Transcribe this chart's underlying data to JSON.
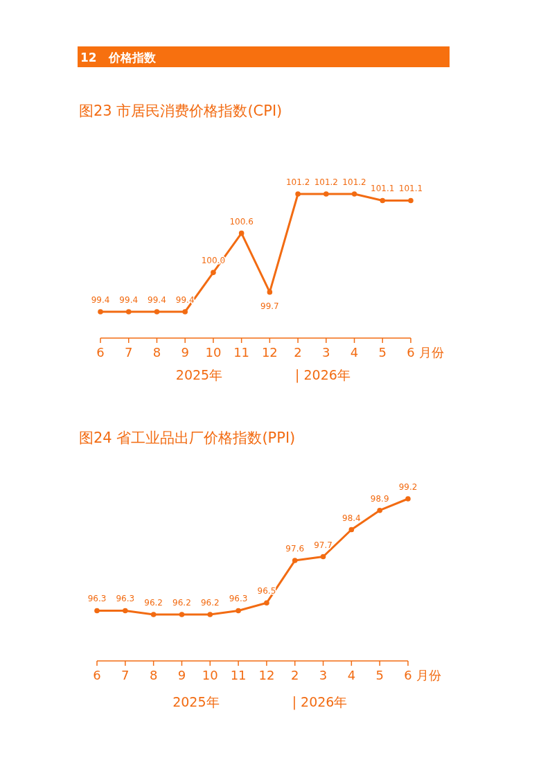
{
  "chart_data": [
    {
      "type": "line",
      "title": "12　价格指数",
      "subtitle": "图23  市居民消费价格指数(CPI)",
      "xlabel": "月份",
      "categories": [
        "6",
        "7",
        "8",
        "9",
        "10",
        "11",
        "12",
        "2",
        "3",
        "4",
        "5",
        "6"
      ],
      "series": [
        {
          "color": "#f26b12",
          "values": [
            99.4,
            99.4,
            99.4,
            99.4,
            100.0,
            100.6,
            99.7,
            101.2,
            101.2,
            101.2,
            101.1,
            101.1
          ],
          "value_labels": [
            "99.4",
            "99.4",
            "99.4",
            "99.4",
            "100.0",
            "100.6",
            "99.7",
            "101.2",
            "101.2",
            "101.2",
            "101.1",
            "101.1"
          ]
        }
      ],
      "marker": "circle",
      "tick_labels": "x",
      "annotations": [
        "2025年",
        "| 2026年"
      ]
    },
    {
      "type": "line",
      "title": "图24  省工业品出厂价格指数(PPI)",
      "xlabel": "月份",
      "categories": [
        "6",
        "7",
        "8",
        "9",
        "10",
        "11",
        "12",
        "2",
        "3",
        "4",
        "5",
        "6"
      ],
      "series": [
        {
          "color": "#f26b12",
          "values": [
            96.3,
            96.3,
            96.2,
            96.2,
            96.2,
            96.3,
            96.5,
            97.6,
            97.7,
            98.4,
            98.9,
            99.2
          ],
          "value_labels": [
            "96.3",
            "96.3",
            "96.2",
            "96.2",
            "96.2",
            "96.3",
            "96.5",
            "97.6",
            "97.7",
            "98.4",
            "98.9",
            "99.2"
          ]
        }
      ],
      "marker": "circle",
      "tick_labels": "x",
      "annotations": [
        "2025年",
        "| 2026年"
      ]
    }
  ]
}
